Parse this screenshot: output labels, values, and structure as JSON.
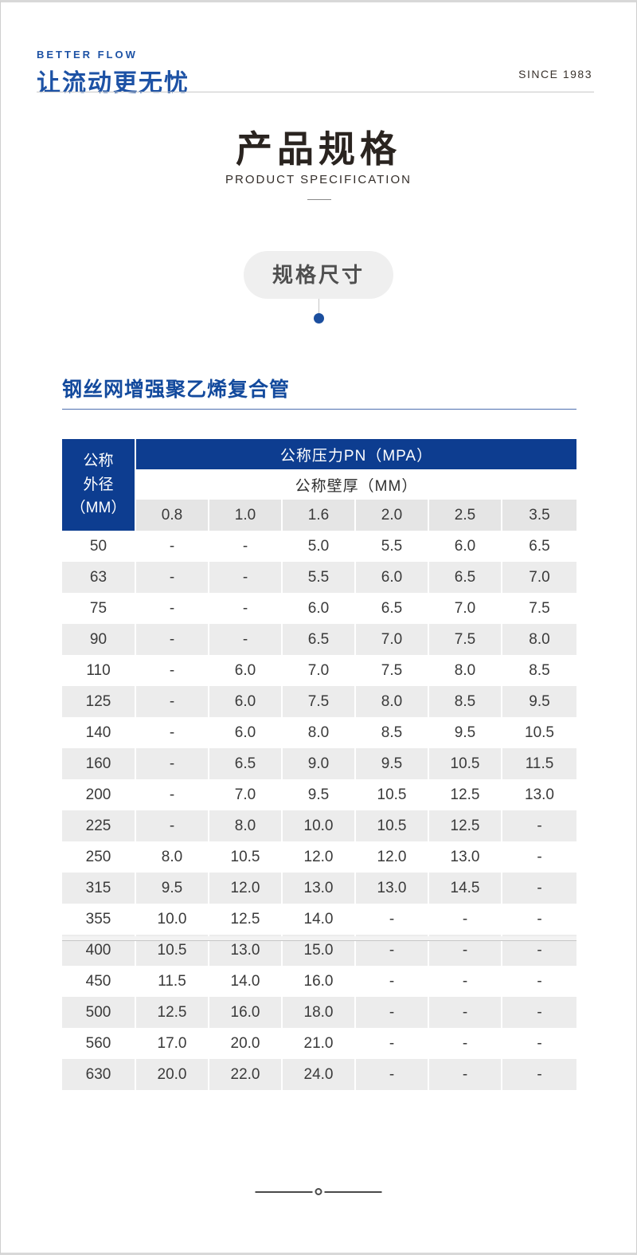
{
  "header": {
    "tagline": "BETTER FLOW",
    "logo": "让流动更无忧",
    "since": "SINCE 1983"
  },
  "title": {
    "zh": "产品规格",
    "en": "PRODUCT SPECIFICATION"
  },
  "badge": {
    "label": "规格尺寸"
  },
  "section": {
    "heading": "钢丝网增强聚乙烯复合管"
  },
  "table": {
    "row_header": "公称\n外径\n（MM）",
    "col_group_header": "公称压力PN（MPA）",
    "sub_header": "公称壁厚（MM）",
    "pressure_columns": [
      "0.8",
      "1.0",
      "1.6",
      "2.0",
      "2.5",
      "3.5"
    ],
    "rows": [
      {
        "od": "50",
        "values": [
          "-",
          "-",
          "5.0",
          "5.5",
          "6.0",
          "6.5"
        ]
      },
      {
        "od": "63",
        "values": [
          "-",
          "-",
          "5.5",
          "6.0",
          "6.5",
          "7.0"
        ]
      },
      {
        "od": "75",
        "values": [
          "-",
          "-",
          "6.0",
          "6.5",
          "7.0",
          "7.5"
        ]
      },
      {
        "od": "90",
        "values": [
          "-",
          "-",
          "6.5",
          "7.0",
          "7.5",
          "8.0"
        ]
      },
      {
        "od": "110",
        "values": [
          "-",
          "6.0",
          "7.0",
          "7.5",
          "8.0",
          "8.5"
        ]
      },
      {
        "od": "125",
        "values": [
          "-",
          "6.0",
          "7.5",
          "8.0",
          "8.5",
          "9.5"
        ]
      },
      {
        "od": "140",
        "values": [
          "-",
          "6.0",
          "8.0",
          "8.5",
          "9.5",
          "10.5"
        ]
      },
      {
        "od": "160",
        "values": [
          "-",
          "6.5",
          "9.0",
          "9.5",
          "10.5",
          "11.5"
        ]
      },
      {
        "od": "200",
        "values": [
          "-",
          "7.0",
          "9.5",
          "10.5",
          "12.5",
          "13.0"
        ]
      },
      {
        "od": "225",
        "values": [
          "-",
          "8.0",
          "10.0",
          "10.5",
          "12.5",
          "-"
        ]
      },
      {
        "od": "250",
        "values": [
          "8.0",
          "10.5",
          "12.0",
          "12.0",
          "13.0",
          "-"
        ]
      },
      {
        "od": "315",
        "values": [
          "9.5",
          "12.0",
          "13.0",
          "13.0",
          "14.5",
          "-"
        ]
      },
      {
        "od": "355",
        "values": [
          "10.0",
          "12.5",
          "14.0",
          "-",
          "-",
          "-"
        ]
      },
      {
        "od": "400",
        "values": [
          "10.5",
          "13.0",
          "15.0",
          "-",
          "-",
          "-"
        ]
      },
      {
        "od": "450",
        "values": [
          "11.5",
          "14.0",
          "16.0",
          "-",
          "-",
          "-"
        ]
      },
      {
        "od": "500",
        "values": [
          "12.5",
          "16.0",
          "18.0",
          "-",
          "-",
          "-"
        ]
      },
      {
        "od": "560",
        "values": [
          "17.0",
          "20.0",
          "21.0",
          "-",
          "-",
          "-"
        ]
      },
      {
        "od": "630",
        "values": [
          "20.0",
          "22.0",
          "24.0",
          "-",
          "-",
          "-"
        ]
      }
    ]
  },
  "colors": {
    "brand_blue": "#1d52a5",
    "table_header_blue": "#0d3d90",
    "heading_blue": "#134a9d",
    "row_stripe_gray": "#ececec",
    "pressure_row_gray": "#e5e5e5",
    "accent_dot_blue": "#1b4e9e"
  }
}
